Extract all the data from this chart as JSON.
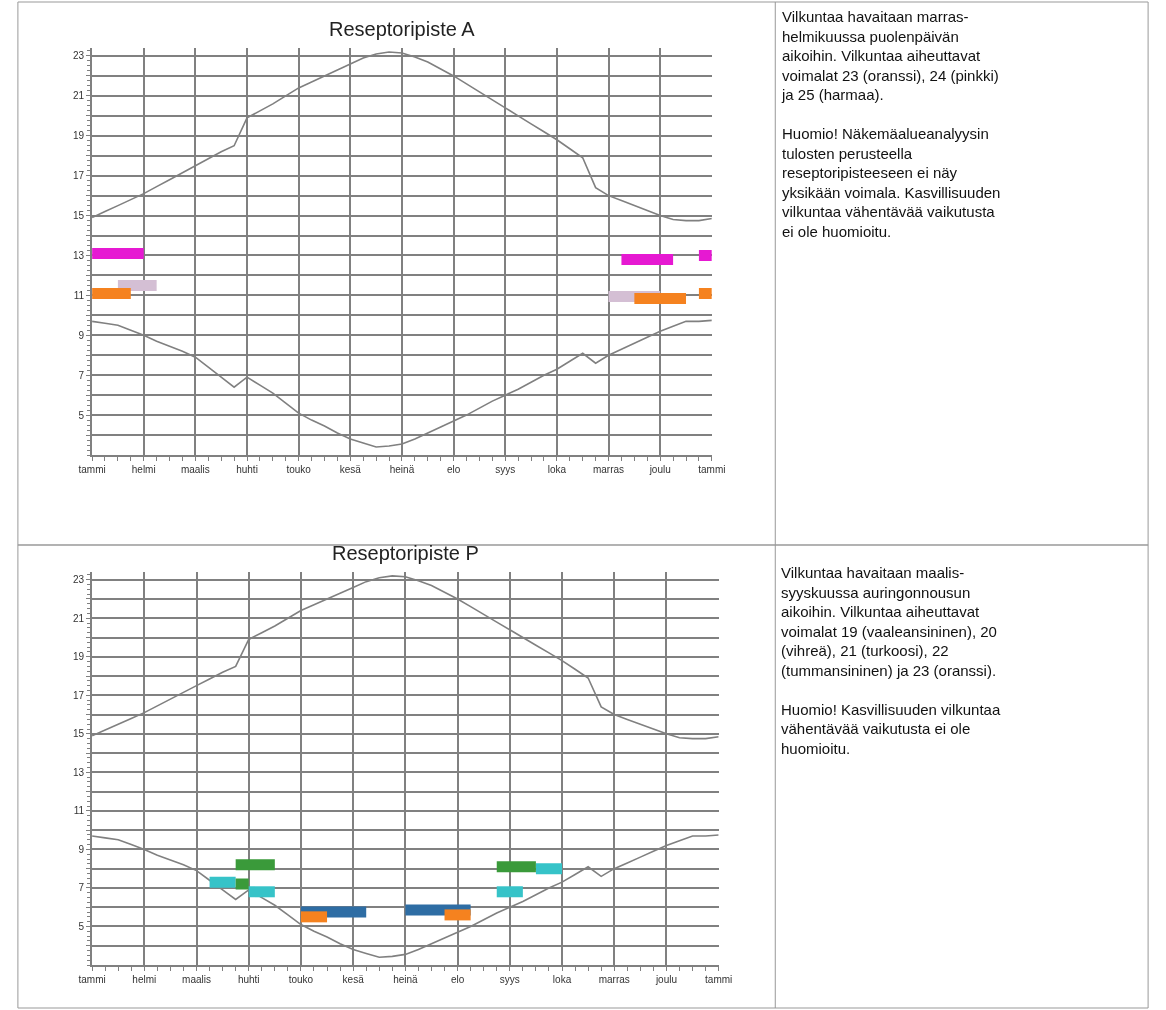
{
  "chart_data": [
    {
      "type": "line",
      "title": "Reseptoripiste A",
      "ylim": [
        3,
        23.4
      ],
      "grid": true,
      "categories": [
        "tammi",
        null,
        null,
        null,
        "helmi",
        null,
        null,
        null,
        "maalis",
        null,
        null,
        null,
        "huhti",
        null,
        null,
        null,
        "touko",
        null,
        null,
        null,
        "kesä",
        null,
        null,
        null,
        "heinä",
        null,
        null,
        null,
        "elo",
        null,
        null,
        null,
        "syys",
        null,
        null,
        null,
        "loka",
        null,
        null,
        null,
        "marras",
        null,
        null,
        null,
        "joulu",
        null,
        null,
        null,
        "tammi"
      ],
      "yticks": [
        {
          "value": 4,
          "label": null
        },
        5,
        {
          "value": 6,
          "label": null
        },
        7,
        {
          "value": 8,
          "label": null
        },
        9,
        {
          "value": 10,
          "label": null
        },
        11,
        {
          "value": 12,
          "label": null
        },
        13,
        {
          "value": 14,
          "label": null
        },
        15,
        {
          "value": 16,
          "label": null
        },
        17,
        {
          "value": 18,
          "label": null
        },
        19,
        {
          "value": 20,
          "label": null
        },
        21,
        {
          "value": 22,
          "label": null
        },
        23
      ],
      "series": [
        {
          "color": "#808080",
          "values": [
            14.9,
            15.2,
            15.5,
            15.8,
            16.1,
            16.45,
            16.8,
            17.15,
            17.5,
            17.85,
            18.2,
            18.5,
            19.9,
            20.25,
            20.6,
            21.0,
            21.4,
            21.7,
            22.0,
            22.3,
            22.6,
            22.9,
            23.1,
            23.2,
            23.15,
            22.95,
            22.7,
            22.35,
            22.0,
            21.6,
            21.2,
            20.8,
            20.4,
            20.0,
            19.6,
            19.2,
            18.8,
            18.35,
            17.9,
            16.4,
            16.0,
            15.75,
            15.5,
            15.25,
            15.0,
            14.8,
            14.75,
            14.75,
            14.85
          ]
        },
        {
          "color": "#808080",
          "values": [
            9.7,
            9.6,
            9.5,
            9.25,
            9.0,
            8.7,
            8.45,
            8.2,
            7.9,
            7.4,
            6.9,
            6.4,
            6.9,
            6.5,
            6.1,
            5.6,
            5.1,
            4.75,
            4.45,
            4.1,
            3.8,
            3.6,
            3.4,
            3.45,
            3.55,
            3.8,
            4.1,
            4.4,
            4.7,
            5.0,
            5.35,
            5.7,
            6.0,
            6.3,
            6.65,
            7.0,
            7.3,
            7.7,
            8.1,
            7.6,
            8.0,
            8.3,
            8.6,
            8.9,
            9.2,
            9.45,
            9.7,
            9.7,
            9.75
          ]
        },
        {
          "color": "#e619d2",
          "values": [
            13.1,
            13.1,
            13.1,
            13.1,
            13.1,
            null,
            null,
            null,
            null,
            null,
            null,
            null,
            null,
            null,
            null,
            null,
            null,
            null,
            null,
            null,
            null,
            null,
            null,
            null,
            null,
            null,
            null,
            null,
            null,
            null,
            null,
            null,
            null,
            null,
            null,
            null,
            null,
            null,
            null,
            null,
            null,
            null,
            null,
            null,
            null,
            null,
            null,
            null,
            null
          ]
        },
        {
          "color": "#d4bfd4",
          "values": [
            null,
            null,
            11.5,
            11.5,
            11.5,
            11.5,
            null,
            null,
            null,
            null,
            null,
            null,
            null,
            null,
            null,
            null,
            null,
            null,
            null,
            null,
            null,
            null,
            null,
            null,
            null,
            null,
            null,
            null,
            null,
            null,
            null,
            null,
            null,
            null,
            null,
            null,
            null,
            null,
            null,
            null,
            null,
            null,
            null,
            null,
            null,
            null,
            null,
            null,
            null
          ]
        },
        {
          "color": "#f5821f",
          "values": [
            11.1,
            11.1,
            11.1,
            11.1,
            null,
            null,
            null,
            null,
            null,
            null,
            null,
            null,
            null,
            null,
            null,
            null,
            null,
            null,
            null,
            null,
            null,
            null,
            null,
            null,
            null,
            null,
            null,
            null,
            null,
            null,
            null,
            null,
            null,
            null,
            null,
            null,
            null,
            null,
            null,
            null,
            null,
            null,
            null,
            null,
            null,
            null,
            null,
            null,
            null
          ]
        },
        {
          "color": "#e619d2",
          "values": [
            null,
            null,
            null,
            null,
            null,
            null,
            null,
            null,
            null,
            null,
            null,
            null,
            null,
            null,
            null,
            null,
            null,
            null,
            null,
            null,
            null,
            null,
            null,
            null,
            null,
            null,
            null,
            null,
            null,
            null,
            null,
            null,
            null,
            null,
            null,
            null,
            null,
            null,
            null,
            null,
            null,
            12.8,
            12.8,
            12.8,
            12.8,
            12.8,
            null,
            null,
            null
          ]
        },
        {
          "color": "#e619d2",
          "values": [
            null,
            null,
            null,
            null,
            null,
            null,
            null,
            null,
            null,
            null,
            null,
            null,
            null,
            null,
            null,
            null,
            null,
            null,
            null,
            null,
            null,
            null,
            null,
            null,
            null,
            null,
            null,
            null,
            null,
            null,
            null,
            null,
            null,
            null,
            null,
            null,
            null,
            null,
            null,
            null,
            null,
            null,
            null,
            null,
            null,
            null,
            null,
            13.0,
            13.0
          ]
        },
        {
          "color": "#d4bfd4",
          "values": [
            null,
            null,
            null,
            null,
            null,
            null,
            null,
            null,
            null,
            null,
            null,
            null,
            null,
            null,
            null,
            null,
            null,
            null,
            null,
            null,
            null,
            null,
            null,
            null,
            null,
            null,
            null,
            null,
            null,
            null,
            null,
            null,
            null,
            null,
            null,
            null,
            null,
            null,
            null,
            null,
            10.95,
            10.95,
            10.95,
            10.95,
            10.95,
            null,
            null,
            null,
            null
          ]
        },
        {
          "color": "#f5821f",
          "values": [
            null,
            null,
            null,
            null,
            null,
            null,
            null,
            null,
            null,
            null,
            null,
            null,
            null,
            null,
            null,
            null,
            null,
            null,
            null,
            null,
            null,
            null,
            null,
            null,
            null,
            null,
            null,
            null,
            null,
            null,
            null,
            null,
            null,
            null,
            null,
            null,
            null,
            null,
            null,
            null,
            null,
            null,
            10.85,
            10.85,
            10.85,
            10.85,
            10.85,
            null,
            null
          ]
        },
        {
          "color": "#f5821f",
          "values": [
            null,
            null,
            null,
            null,
            null,
            null,
            null,
            null,
            null,
            null,
            null,
            null,
            null,
            null,
            null,
            null,
            null,
            null,
            null,
            null,
            null,
            null,
            null,
            null,
            null,
            null,
            null,
            null,
            null,
            null,
            null,
            null,
            null,
            null,
            null,
            null,
            null,
            null,
            null,
            null,
            null,
            null,
            null,
            null,
            null,
            null,
            null,
            11.1,
            11.1
          ]
        }
      ]
    },
    {
      "type": "other",
      "annotations": [
        "Vilkuntaa havaitaan marras-\nhelmikuussa puolenpäivän\naikoihin. Vilkuntaa aiheuttavat\nvoimalat 23 (oranssi), 24 (pinkki)\nja 25 (harmaa).",
        "Huomio! Näkemäalueanalyysin\ntulosten perusteella\nreseptoripisteeseen ei näy\nyksikään voimala. Kasvillisuuden\nvilkuntaa vähentävää vaikutusta\nei ole huomioitu."
      ]
    },
    {
      "type": "line",
      "title": "Reseptoripiste P",
      "ylim": [
        3,
        23.4
      ],
      "grid": true,
      "categories": [
        "tammi",
        null,
        null,
        null,
        "helmi",
        null,
        null,
        null,
        "maalis",
        null,
        null,
        null,
        "huhti",
        null,
        null,
        null,
        "touko",
        null,
        null,
        null,
        "kesä",
        null,
        null,
        null,
        "heinä",
        null,
        null,
        null,
        "elo",
        null,
        null,
        null,
        "syys",
        null,
        null,
        null,
        "loka",
        null,
        null,
        null,
        "marras",
        null,
        null,
        null,
        "joulu",
        null,
        null,
        null,
        "tammi"
      ],
      "yticks": [
        {
          "value": 4,
          "label": null
        },
        5,
        {
          "value": 6,
          "label": null
        },
        7,
        {
          "value": 8,
          "label": null
        },
        9,
        {
          "value": 10,
          "label": null
        },
        11,
        {
          "value": 12,
          "label": null
        },
        13,
        {
          "value": 14,
          "label": null
        },
        15,
        {
          "value": 16,
          "label": null
        },
        17,
        {
          "value": 18,
          "label": null
        },
        19,
        {
          "value": 20,
          "label": null
        },
        21,
        {
          "value": 22,
          "label": null
        },
        23
      ],
      "series": [
        {
          "color": "#808080",
          "values": [
            14.9,
            15.2,
            15.5,
            15.8,
            16.1,
            16.45,
            16.8,
            17.15,
            17.5,
            17.85,
            18.2,
            18.5,
            19.9,
            20.25,
            20.6,
            21.0,
            21.4,
            21.7,
            22.0,
            22.3,
            22.6,
            22.9,
            23.1,
            23.2,
            23.15,
            22.95,
            22.7,
            22.35,
            22.0,
            21.6,
            21.2,
            20.8,
            20.4,
            20.0,
            19.6,
            19.2,
            18.8,
            18.35,
            17.9,
            16.4,
            16.0,
            15.75,
            15.5,
            15.25,
            15.0,
            14.8,
            14.75,
            14.75,
            14.85
          ]
        },
        {
          "color": "#808080",
          "values": [
            9.7,
            9.6,
            9.5,
            9.25,
            9.0,
            8.7,
            8.45,
            8.2,
            7.9,
            7.4,
            6.9,
            6.4,
            6.9,
            6.5,
            6.1,
            5.6,
            5.1,
            4.75,
            4.45,
            4.1,
            3.8,
            3.6,
            3.4,
            3.45,
            3.55,
            3.8,
            4.1,
            4.4,
            4.7,
            5.0,
            5.35,
            5.7,
            6.0,
            6.3,
            6.65,
            7.0,
            7.3,
            7.7,
            8.1,
            7.6,
            8.0,
            8.3,
            8.6,
            8.9,
            9.2,
            9.45,
            9.7,
            9.7,
            9.75
          ]
        },
        {
          "color": "#36c3c8",
          "values": [
            null,
            null,
            null,
            null,
            null,
            null,
            null,
            null,
            null,
            7.3,
            7.3,
            7.3,
            null,
            null,
            null,
            null,
            null,
            null,
            null,
            null,
            null,
            null,
            null,
            null,
            null,
            null,
            null,
            null,
            null,
            null,
            null,
            null,
            null,
            null,
            null,
            null,
            null,
            null,
            null,
            null,
            null,
            null,
            null,
            null,
            null,
            null,
            null,
            null,
            null
          ]
        },
        {
          "color": "#3a9a3a",
          "values": [
            null,
            null,
            null,
            null,
            null,
            null,
            null,
            null,
            null,
            null,
            null,
            7.2,
            7.2,
            null,
            null,
            null,
            null,
            null,
            null,
            null,
            null,
            null,
            null,
            null,
            null,
            null,
            null,
            null,
            null,
            null,
            null,
            null,
            null,
            null,
            null,
            null,
            null,
            null,
            null,
            null,
            null,
            null,
            null,
            null,
            null,
            null,
            null,
            null,
            null
          ]
        },
        {
          "color": "#3a9a3a",
          "values": [
            null,
            null,
            null,
            null,
            null,
            null,
            null,
            null,
            null,
            null,
            null,
            8.2,
            8.2,
            8.2,
            8.2,
            null,
            null,
            null,
            null,
            null,
            null,
            null,
            null,
            null,
            null,
            null,
            null,
            null,
            null,
            null,
            null,
            null,
            null,
            null,
            null,
            null,
            null,
            null,
            null,
            null,
            null,
            null,
            null,
            null,
            null,
            null,
            null,
            null,
            null
          ]
        },
        {
          "color": "#36c3c8",
          "values": [
            null,
            null,
            null,
            null,
            null,
            null,
            null,
            null,
            null,
            null,
            null,
            null,
            6.8,
            6.8,
            6.8,
            null,
            null,
            null,
            null,
            null,
            null,
            null,
            null,
            null,
            null,
            null,
            null,
            null,
            null,
            null,
            null,
            null,
            null,
            null,
            null,
            null,
            null,
            null,
            null,
            null,
            null,
            null,
            null,
            null,
            null,
            null,
            null,
            null,
            null
          ]
        },
        {
          "color": "#2e6da4",
          "values": [
            null,
            null,
            null,
            null,
            null,
            null,
            null,
            null,
            null,
            null,
            null,
            null,
            null,
            null,
            null,
            null,
            5.75,
            5.75,
            5.75,
            5.75,
            5.75,
            5.75,
            null,
            null,
            null,
            null,
            null,
            null,
            null,
            null,
            null,
            null,
            null,
            null,
            null,
            null,
            null,
            null,
            null,
            null,
            null,
            null,
            null,
            null,
            null,
            null,
            null,
            null,
            null
          ]
        },
        {
          "color": "#f5821f",
          "values": [
            null,
            null,
            null,
            null,
            null,
            null,
            null,
            null,
            null,
            null,
            null,
            null,
            null,
            null,
            null,
            null,
            5.5,
            5.5,
            5.5,
            null,
            null,
            null,
            null,
            null,
            null,
            null,
            null,
            null,
            null,
            null,
            null,
            null,
            null,
            null,
            null,
            null,
            null,
            null,
            null,
            null,
            null,
            null,
            null,
            null,
            null,
            null,
            null,
            null,
            null
          ]
        },
        {
          "color": "#2e6da4",
          "values": [
            null,
            null,
            null,
            null,
            null,
            null,
            null,
            null,
            null,
            null,
            null,
            null,
            null,
            null,
            null,
            null,
            null,
            null,
            null,
            null,
            null,
            null,
            null,
            null,
            5.85,
            5.85,
            5.85,
            5.85,
            5.85,
            5.85,
            null,
            null,
            null,
            null,
            null,
            null,
            null,
            null,
            null,
            null,
            null,
            null,
            null,
            null,
            null,
            null,
            null,
            null,
            null
          ]
        },
        {
          "color": "#f5821f",
          "values": [
            null,
            null,
            null,
            null,
            null,
            null,
            null,
            null,
            null,
            null,
            null,
            null,
            null,
            null,
            null,
            null,
            null,
            null,
            null,
            null,
            null,
            null,
            null,
            null,
            null,
            null,
            null,
            5.6,
            5.6,
            5.6,
            null,
            null,
            null,
            null,
            null,
            null,
            null,
            null,
            null,
            null,
            null,
            null,
            null,
            null,
            null,
            null,
            null,
            null,
            null
          ]
        },
        {
          "color": "#36c3c8",
          "values": [
            null,
            null,
            null,
            null,
            null,
            null,
            null,
            null,
            null,
            null,
            null,
            null,
            null,
            null,
            null,
            null,
            null,
            null,
            null,
            null,
            null,
            null,
            null,
            null,
            null,
            null,
            null,
            null,
            null,
            null,
            null,
            null,
            null,
            null,
            8.0,
            8.0,
            8.0,
            null,
            null,
            null,
            null,
            null,
            null,
            null,
            null,
            null,
            null,
            null,
            null
          ]
        },
        {
          "color": "#3a9a3a",
          "values": [
            null,
            null,
            null,
            null,
            null,
            null,
            null,
            null,
            null,
            null,
            null,
            null,
            null,
            null,
            null,
            null,
            null,
            null,
            null,
            null,
            null,
            null,
            null,
            null,
            null,
            null,
            null,
            null,
            null,
            null,
            null,
            8.1,
            8.1,
            8.1,
            8.1,
            null,
            null,
            null,
            null,
            null,
            null,
            null,
            null,
            null,
            null,
            null,
            null,
            null,
            null
          ]
        },
        {
          "color": "#36c3c8",
          "values": [
            null,
            null,
            null,
            null,
            null,
            null,
            null,
            null,
            null,
            null,
            null,
            null,
            null,
            null,
            null,
            null,
            null,
            null,
            null,
            null,
            null,
            null,
            null,
            null,
            null,
            null,
            null,
            null,
            null,
            null,
            null,
            6.8,
            6.8,
            6.8,
            null,
            null,
            null,
            null,
            null,
            null,
            null,
            null,
            null,
            null,
            null,
            null,
            null,
            null,
            null
          ]
        }
      ]
    },
    {
      "type": "other",
      "annotations": [
        "Vilkuntaa havaitaan maalis-\nsyyskuussa auringonnousun\naikoihin. Vilkuntaa aiheuttavat\nvoimalat 19 (vaaleansininen), 20\n(vihreä), 21 (turkoosi), 22\n(tummansininen) ja 23 (oranssi).",
        "Huomio! Kasvillisuuden vilkuntaa\nvähentävää vaikutusta ei ole\nhuomioitu."
      ]
    }
  ]
}
